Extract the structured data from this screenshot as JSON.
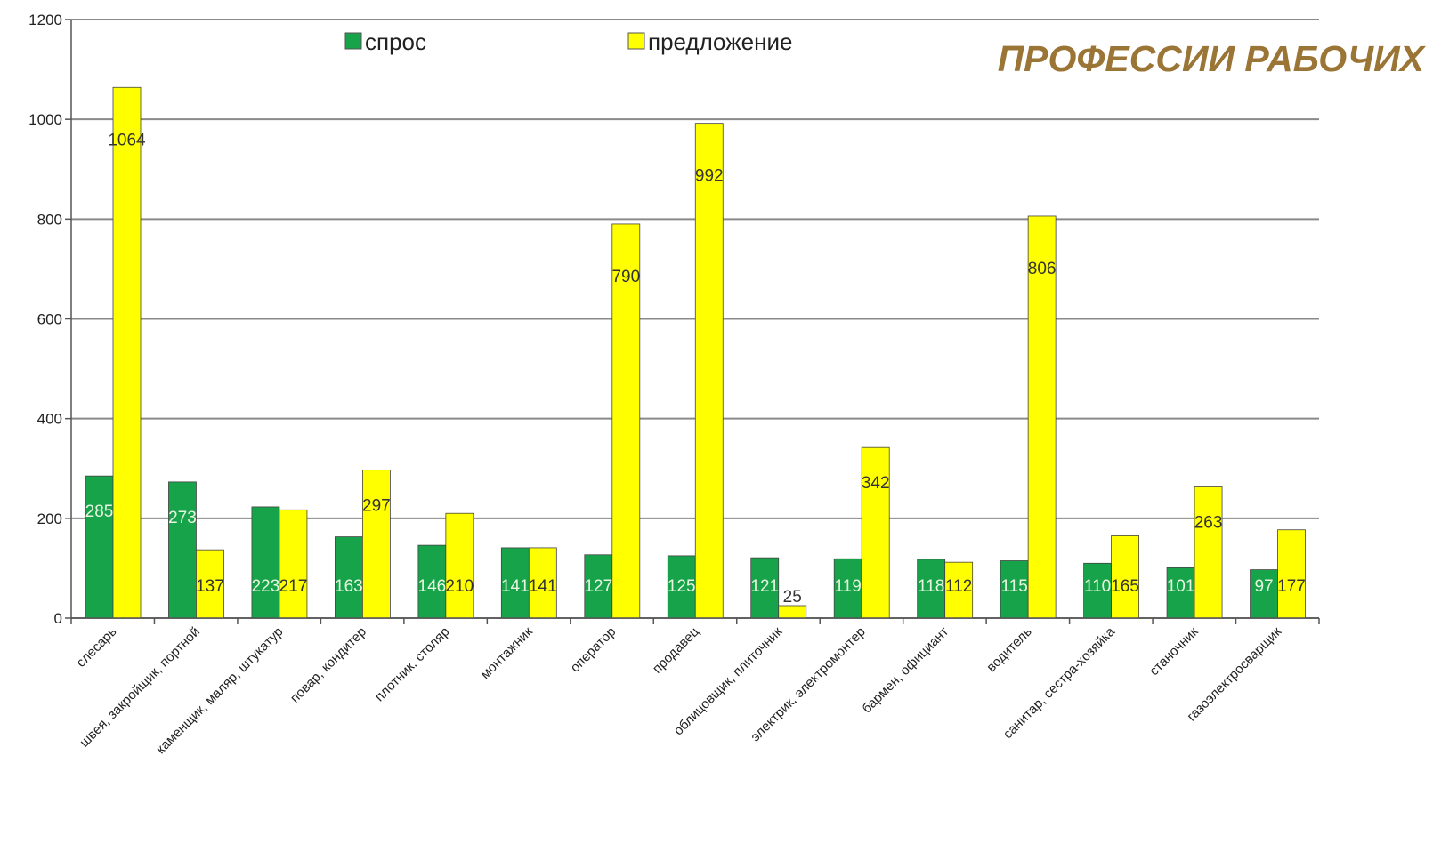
{
  "chart_data": {
    "type": "bar",
    "title": "ПРОФЕССИИ РАБОЧИХ",
    "categories": [
      "слесарь",
      "швея, закройщик, портной",
      "каменщик, маляр, штукатур",
      "повар, кондитер",
      "плотник, столяр",
      "монтажник",
      "оператор",
      "продавец",
      "облицовщик, плиточник",
      "электрик, электромонтер",
      "бармен, официант",
      "водитель",
      "санитар, сестра-хозяйка",
      "станочник",
      "газоэлектросварщик"
    ],
    "series": [
      {
        "name": "спрос",
        "values": [
          285,
          273,
          223,
          163,
          146,
          141,
          127,
          125,
          121,
          119,
          118,
          115,
          110,
          101,
          97
        ]
      },
      {
        "name": "предложение",
        "values": [
          1064,
          137,
          217,
          297,
          210,
          141,
          790,
          992,
          25,
          342,
          112,
          806,
          165,
          263,
          177
        ]
      }
    ],
    "ylim": [
      0,
      1200
    ],
    "yticks": [
      "0",
      "200",
      "400",
      "600",
      "800",
      "1000",
      "1200"
    ],
    "grid": true,
    "legend_position": "top",
    "colors": {
      "demand": "#16a34a",
      "supply": "#ffff00",
      "title": "#9a7535",
      "demand_label": "#e8f5e0",
      "supply_label": "#333333"
    },
    "xlabel": "",
    "ylabel": ""
  }
}
